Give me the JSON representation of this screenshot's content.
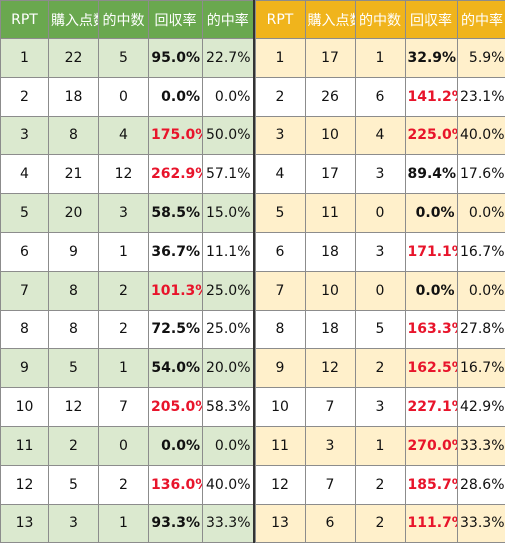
{
  "colors": {
    "left_header": "#6aa84f",
    "right_header": "#f0b41c",
    "left_shade": "#dbe9cf",
    "right_shade": "#fff0cb",
    "highlight_red": "#e8142b"
  },
  "headers": [
    "RPT",
    "購入点数",
    "的中数",
    "回収率",
    "的中率"
  ],
  "left_rows": [
    {
      "rpt": "1",
      "buy": "22",
      "hits": "5",
      "rec": "95.0%",
      "rate": "22.7%"
    },
    {
      "rpt": "2",
      "buy": "18",
      "hits": "0",
      "rec": "0.0%",
      "rate": "0.0%"
    },
    {
      "rpt": "3",
      "buy": "8",
      "hits": "4",
      "rec": "175.0%",
      "rate": "50.0%"
    },
    {
      "rpt": "4",
      "buy": "21",
      "hits": "12",
      "rec": "262.9%",
      "rate": "57.1%"
    },
    {
      "rpt": "5",
      "buy": "20",
      "hits": "3",
      "rec": "58.5%",
      "rate": "15.0%"
    },
    {
      "rpt": "6",
      "buy": "9",
      "hits": "1",
      "rec": "36.7%",
      "rate": "11.1%"
    },
    {
      "rpt": "7",
      "buy": "8",
      "hits": "2",
      "rec": "101.3%",
      "rate": "25.0%"
    },
    {
      "rpt": "8",
      "buy": "8",
      "hits": "2",
      "rec": "72.5%",
      "rate": "25.0%"
    },
    {
      "rpt": "9",
      "buy": "5",
      "hits": "1",
      "rec": "54.0%",
      "rate": "20.0%"
    },
    {
      "rpt": "10",
      "buy": "12",
      "hits": "7",
      "rec": "205.0%",
      "rate": "58.3%"
    },
    {
      "rpt": "11",
      "buy": "2",
      "hits": "0",
      "rec": "0.0%",
      "rate": "0.0%"
    },
    {
      "rpt": "12",
      "buy": "5",
      "hits": "2",
      "rec": "136.0%",
      "rate": "40.0%"
    },
    {
      "rpt": "13",
      "buy": "3",
      "hits": "1",
      "rec": "93.3%",
      "rate": "33.3%"
    }
  ],
  "right_rows": [
    {
      "rpt": "1",
      "buy": "17",
      "hits": "1",
      "rec": "32.9%",
      "rate": "5.9%"
    },
    {
      "rpt": "2",
      "buy": "26",
      "hits": "6",
      "rec": "141.2%",
      "rate": "23.1%"
    },
    {
      "rpt": "3",
      "buy": "10",
      "hits": "4",
      "rec": "225.0%",
      "rate": "40.0%"
    },
    {
      "rpt": "4",
      "buy": "17",
      "hits": "3",
      "rec": "89.4%",
      "rate": "17.6%"
    },
    {
      "rpt": "5",
      "buy": "11",
      "hits": "0",
      "rec": "0.0%",
      "rate": "0.0%"
    },
    {
      "rpt": "6",
      "buy": "18",
      "hits": "3",
      "rec": "171.1%",
      "rate": "16.7%"
    },
    {
      "rpt": "7",
      "buy": "10",
      "hits": "0",
      "rec": "0.0%",
      "rate": "0.0%"
    },
    {
      "rpt": "8",
      "buy": "18",
      "hits": "5",
      "rec": "163.3%",
      "rate": "27.8%"
    },
    {
      "rpt": "9",
      "buy": "12",
      "hits": "2",
      "rec": "162.5%",
      "rate": "16.7%"
    },
    {
      "rpt": "10",
      "buy": "7",
      "hits": "3",
      "rec": "227.1%",
      "rate": "42.9%"
    },
    {
      "rpt": "11",
      "buy": "3",
      "hits": "1",
      "rec": "270.0%",
      "rate": "33.3%"
    },
    {
      "rpt": "12",
      "buy": "7",
      "hits": "2",
      "rec": "185.7%",
      "rate": "28.6%"
    },
    {
      "rpt": "13",
      "buy": "6",
      "hits": "2",
      "rec": "111.7%",
      "rate": "33.3%"
    }
  ]
}
